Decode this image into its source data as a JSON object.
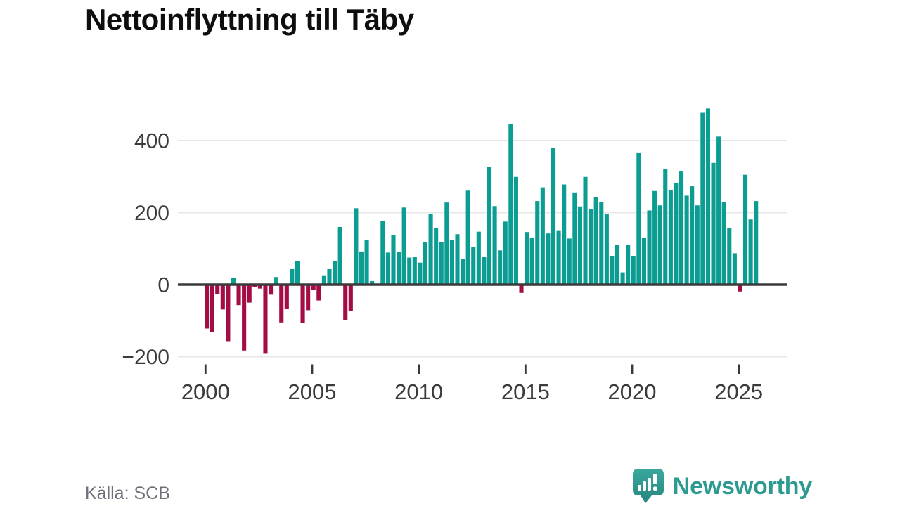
{
  "page": {
    "title": "Nettoinflyttning till Täby"
  },
  "footer": {
    "source": "Källa: SCB",
    "brand": "Newsworthy"
  },
  "colors": {
    "positive": "#0b9c92",
    "negative": "#a30c44",
    "axis": "#3a3a3a",
    "grid": "#e7e7e7",
    "tick_text": "#3b3b3b",
    "brand_teal": "#2d9a91",
    "logo_top": "#3aa89d",
    "logo_bottom": "#27857d",
    "logo_glyph": "#ffffff",
    "text_muted": "#70707a"
  },
  "chart_data": {
    "type": "bar",
    "title": "Nettoinflyttning till Täby",
    "frequency": "quarterly",
    "x_tick_labels": [
      "2000",
      "2005",
      "2010",
      "2015",
      "2020",
      "2025"
    ],
    "y_ticks": [
      400,
      200,
      0,
      -200
    ],
    "ylim": [
      -220,
      510
    ],
    "grid": true,
    "legend": "none",
    "series": [
      {
        "year": 2000,
        "values": [
          -122,
          -131,
          -26,
          -69
        ]
      },
      {
        "year": 2001,
        "values": [
          -157,
          19,
          -57,
          -183
        ]
      },
      {
        "year": 2002,
        "values": [
          -50,
          -7,
          -11,
          -192
        ]
      },
      {
        "year": 2003,
        "values": [
          -28,
          21,
          -105,
          -68
        ]
      },
      {
        "year": 2004,
        "values": [
          43,
          66,
          -107,
          -71
        ]
      },
      {
        "year": 2005,
        "values": [
          -14,
          -44,
          24,
          43
        ]
      },
      {
        "year": 2006,
        "values": [
          66,
          160,
          -99,
          -73
        ]
      },
      {
        "year": 2007,
        "values": [
          212,
          92,
          124,
          10
        ]
      },
      {
        "year": 2008,
        "values": [
          0,
          176,
          89,
          137
        ]
      },
      {
        "year": 2009,
        "values": [
          91,
          214,
          75,
          78
        ]
      },
      {
        "year": 2010,
        "values": [
          61,
          118,
          197,
          158
        ]
      },
      {
        "year": 2011,
        "values": [
          118,
          228,
          124,
          140
        ]
      },
      {
        "year": 2012,
        "values": [
          71,
          261,
          105,
          147
        ]
      },
      {
        "year": 2013,
        "values": [
          78,
          326,
          218,
          95
        ]
      },
      {
        "year": 2014,
        "values": [
          175,
          445,
          299,
          -23
        ]
      },
      {
        "year": 2015,
        "values": [
          146,
          129,
          232,
          270
        ]
      },
      {
        "year": 2016,
        "values": [
          142,
          380,
          151,
          278
        ]
      },
      {
        "year": 2017,
        "values": [
          128,
          256,
          217,
          299
        ]
      },
      {
        "year": 2018,
        "values": [
          210,
          243,
          229,
          196
        ]
      },
      {
        "year": 2019,
        "values": [
          80,
          111,
          34,
          111
        ]
      },
      {
        "year": 2020,
        "values": [
          80,
          367,
          129,
          206
        ]
      },
      {
        "year": 2021,
        "values": [
          260,
          220,
          320,
          263
        ]
      },
      {
        "year": 2022,
        "values": [
          283,
          314,
          247,
          273
        ]
      },
      {
        "year": 2023,
        "values": [
          220,
          477,
          489,
          338
        ]
      },
      {
        "year": 2024,
        "values": [
          411,
          230,
          157,
          87
        ]
      },
      {
        "year": 2025,
        "values": [
          -19,
          305,
          181,
          232
        ]
      }
    ]
  }
}
